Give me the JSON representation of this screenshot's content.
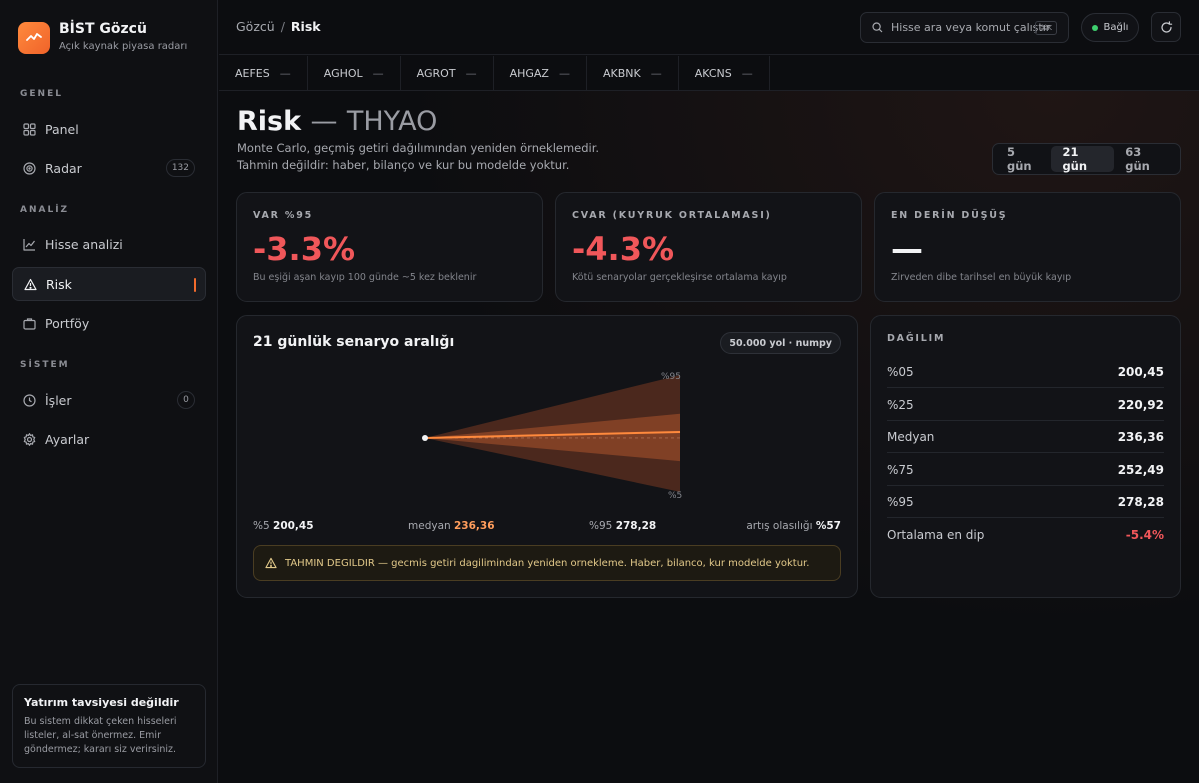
{
  "brand": {
    "title": "BİST Gözcü",
    "subtitle": "Açık kaynak piyasa radarı"
  },
  "sidebar": {
    "sections": [
      {
        "label": "GENEL"
      },
      {
        "label": "ANALİZ"
      },
      {
        "label": "SİSTEM"
      }
    ],
    "items": [
      {
        "label": "Panel",
        "icon": "grid-icon"
      },
      {
        "label": "Radar",
        "icon": "radar-icon",
        "badge": "132"
      },
      {
        "label": "Hisse analizi",
        "icon": "line-chart-icon"
      },
      {
        "label": "Risk",
        "icon": "warning-icon",
        "active": true
      },
      {
        "label": "Portföy",
        "icon": "briefcase-icon"
      },
      {
        "label": "İşler",
        "icon": "clock-icon",
        "badge": "0"
      },
      {
        "label": "Ayarlar",
        "icon": "gear-icon"
      }
    ],
    "disclaimer": {
      "title": "Yatırım tavsiyesi değildir",
      "text": "Bu sistem dikkat çeken hisseleri listeler, al-sat önermez. Emir göndermez; kararı siz verirsiniz."
    }
  },
  "header": {
    "breadcrumb": {
      "root": "Gözcü",
      "separator": "/",
      "current": "Risk"
    },
    "search": {
      "placeholder": "Hisse ara veya komut çalıştır",
      "shortcut": "⌘K"
    },
    "status": "Bağlı"
  },
  "tickers": [
    {
      "symbol": "AEFES",
      "change": "—"
    },
    {
      "symbol": "AGHOL",
      "change": "—"
    },
    {
      "symbol": "AGROT",
      "change": "—"
    },
    {
      "symbol": "AHGAZ",
      "change": "—"
    },
    {
      "symbol": "AKBNK",
      "change": "—"
    },
    {
      "symbol": "AKCNS",
      "change": "—"
    }
  ],
  "page": {
    "title": "Risk",
    "separator": "—",
    "symbol": "THYAO",
    "description": "Monte Carlo, geçmiş getiri dağılımından yeniden örneklemedir. Tahmin değildir: haber, bilanço ve kur bu modelde yoktur.",
    "periods": [
      {
        "label": "5 gün",
        "active": false
      },
      {
        "label": "21 gün",
        "active": true
      },
      {
        "label": "63 gün",
        "active": false
      }
    ]
  },
  "metrics": [
    {
      "label": "VAR %95",
      "value": "-3.3%",
      "note": "Bu eşiği aşan kayıp 100 günde ~5 kez beklenir"
    },
    {
      "label": "CVAR (KUYRUK ORTALAMASI)",
      "value": "-4.3%",
      "note": "Kötü senaryolar gerçekleşirse ortalama kayıp"
    },
    {
      "label": "EN DERİN DÜŞÜŞ",
      "value": "—",
      "note": "Zirveden dibe tarihsel en büyük kayıp"
    }
  ],
  "scenario": {
    "title": "21 günlük senaryo aralığı",
    "badge": "50.000 yol · numpy",
    "band_labels": {
      "top": "%95",
      "bottom": "%5"
    },
    "stats": {
      "p5_label": "%5",
      "p5_value": "200,45",
      "median_label": "medyan",
      "median_value": "236,36",
      "p95_label": "%95",
      "p95_value": "278,28",
      "prob_label": "artış olasılığı",
      "prob_value": "%57"
    },
    "warning": "TAHMIN DEGILDIR — gecmis getiri dagilimindan yeniden ornekleme. Haber, bilanco, kur modelde yoktur."
  },
  "chart_data": {
    "type": "area",
    "x": [
      0,
      21
    ],
    "start": 236.36,
    "series": [
      {
        "values": [
          236.36,
          200.45
        ]
      },
      {
        "values": [
          236.36,
          220.92
        ]
      },
      {
        "values": [
          236.36,
          236.36
        ]
      },
      {
        "values": [
          236.36,
          252.49
        ]
      },
      {
        "values": [
          236.36,
          278.28
        ]
      }
    ],
    "ylim": [
      197,
      281
    ],
    "colors": {
      "outer": "#7a3a22",
      "inner": "#a4502c",
      "median": "#ff8a3d"
    }
  },
  "distribution": {
    "title": "DAĞILIM",
    "rows": [
      {
        "label": "%05",
        "value": "200,45"
      },
      {
        "label": "%25",
        "value": "220,92"
      },
      {
        "label": "Medyan",
        "value": "236,36"
      },
      {
        "label": "%75",
        "value": "252,49"
      },
      {
        "label": "%95",
        "value": "278,28"
      },
      {
        "label": "Ortalama en dip",
        "value": "-5.4%",
        "negative": true
      }
    ]
  }
}
